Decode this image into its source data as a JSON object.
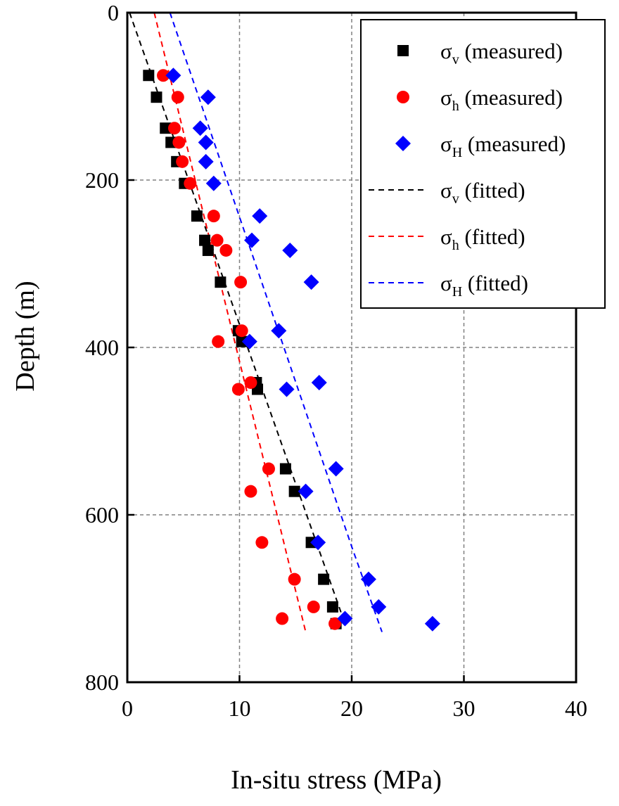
{
  "chart_data": {
    "type": "scatter",
    "title": "",
    "xlabel": "In-situ stress (MPa)",
    "ylabel": "Depth (m)",
    "xlim": [
      0,
      40
    ],
    "ylim": [
      0,
      800
    ],
    "y_inverted": true,
    "x_ticks": [
      0,
      10,
      20,
      30,
      40
    ],
    "y_ticks": [
      0,
      200,
      400,
      600,
      800
    ],
    "grid": true,
    "legend_position": "top-right",
    "series": [
      {
        "name": "σv (measured)",
        "symbol": "σ",
        "subscript": "v",
        "suffix": "(measured)",
        "kind": "scatter",
        "marker": "square",
        "color": "#000000",
        "points": [
          [
            1.9,
            75
          ],
          [
            2.6,
            101
          ],
          [
            3.4,
            138
          ],
          [
            3.9,
            155
          ],
          [
            4.4,
            178
          ],
          [
            5.1,
            204
          ],
          [
            6.2,
            243
          ],
          [
            6.9,
            272
          ],
          [
            7.2,
            284
          ],
          [
            8.3,
            322
          ],
          [
            9.9,
            380
          ],
          [
            10.2,
            393
          ],
          [
            11.5,
            442
          ],
          [
            11.6,
            450
          ],
          [
            14.1,
            545
          ],
          [
            14.9,
            572
          ],
          [
            16.4,
            633
          ],
          [
            17.5,
            677
          ],
          [
            18.3,
            710
          ],
          [
            18.6,
            730
          ]
        ]
      },
      {
        "name": "σh (measured)",
        "symbol": "σ",
        "subscript": "h",
        "suffix": "(measured)",
        "kind": "scatter",
        "marker": "circle",
        "color": "#ff0000",
        "points": [
          [
            3.2,
            75
          ],
          [
            4.5,
            101
          ],
          [
            4.2,
            138
          ],
          [
            4.6,
            155
          ],
          [
            4.9,
            178
          ],
          [
            5.6,
            204
          ],
          [
            7.7,
            243
          ],
          [
            8.0,
            272
          ],
          [
            8.8,
            284
          ],
          [
            10.1,
            322
          ],
          [
            10.2,
            380
          ],
          [
            8.1,
            393
          ],
          [
            11.0,
            442
          ],
          [
            9.9,
            450
          ],
          [
            12.6,
            545
          ],
          [
            11.0,
            572
          ],
          [
            12.0,
            633
          ],
          [
            14.9,
            677
          ],
          [
            16.6,
            710
          ],
          [
            13.8,
            724
          ],
          [
            18.5,
            730
          ]
        ]
      },
      {
        "name": "σH (measured)",
        "symbol": "σ",
        "subscript": "H",
        "suffix": "(measured)",
        "kind": "scatter",
        "marker": "diamond",
        "color": "#0000ff",
        "points": [
          [
            4.1,
            75
          ],
          [
            7.2,
            101
          ],
          [
            6.5,
            138
          ],
          [
            7.0,
            155
          ],
          [
            7.0,
            178
          ],
          [
            7.7,
            204
          ],
          [
            11.8,
            243
          ],
          [
            11.1,
            272
          ],
          [
            14.5,
            284
          ],
          [
            16.4,
            322
          ],
          [
            13.5,
            380
          ],
          [
            10.9,
            393
          ],
          [
            17.1,
            442
          ],
          [
            14.2,
            450
          ],
          [
            18.6,
            545
          ],
          [
            15.9,
            572
          ],
          [
            17.0,
            633
          ],
          [
            21.5,
            677
          ],
          [
            22.4,
            710
          ],
          [
            19.4,
            724
          ],
          [
            27.2,
            730
          ]
        ]
      },
      {
        "name": "σv (fitted)",
        "symbol": "σ",
        "subscript": "v",
        "suffix": "(fitted)",
        "kind": "line",
        "dash": true,
        "color": "#000000",
        "points": [
          [
            0.2,
            0
          ],
          [
            19.4,
            730
          ]
        ]
      },
      {
        "name": "σh (fitted)",
        "symbol": "σ",
        "subscript": "h",
        "suffix": "(fitted)",
        "kind": "line",
        "dash": true,
        "color": "#ff0000",
        "points": [
          [
            2.4,
            0
          ],
          [
            15.9,
            740
          ]
        ]
      },
      {
        "name": "σH (fitted)",
        "symbol": "σ",
        "subscript": "H",
        "suffix": "(fitted)",
        "kind": "line",
        "dash": true,
        "color": "#0000ff",
        "points": [
          [
            3.8,
            0
          ],
          [
            20.0,
            638
          ],
          [
            22.7,
            740
          ]
        ]
      }
    ]
  }
}
